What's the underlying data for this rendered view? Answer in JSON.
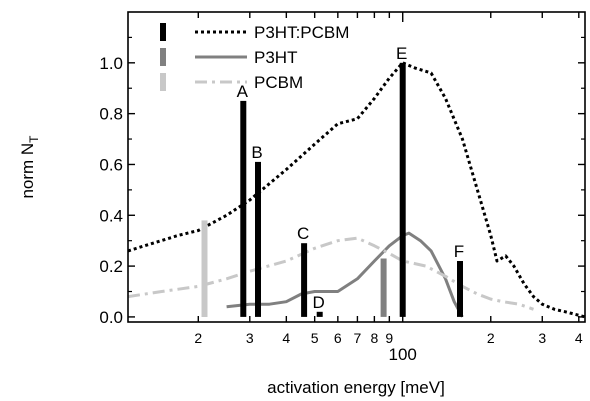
{
  "chart_data": {
    "type": "line",
    "xlabel": "activation energy [meV]",
    "ylabel": "norm N",
    "ylabel_sub": "T",
    "xscale": "log",
    "xlim": [
      11.5,
      420
    ],
    "ylim": [
      -0.02,
      1.2
    ],
    "y_ticks": [
      0.0,
      0.2,
      0.4,
      0.6,
      0.8,
      1.0
    ],
    "y_tick_labels": [
      "0.0",
      "0.2",
      "0.4",
      "0.6",
      "0.8",
      "1.0"
    ],
    "x_ticks": [
      20,
      30,
      40,
      50,
      60,
      70,
      80,
      90,
      100,
      200,
      300,
      400
    ],
    "x_tick_labels": [
      "2",
      "3",
      "4",
      "5",
      "6",
      "7",
      "8",
      "9",
      "100",
      "2",
      "3",
      "4"
    ],
    "legend_position": "top-right",
    "series": [
      {
        "name": "P3HT:PCBM",
        "color": "#000000",
        "style": "dotted",
        "x": [
          11.5,
          14,
          17,
          20,
          25,
          30,
          40,
          50,
          60,
          70,
          80,
          90,
          100,
          110,
          125,
          140,
          160,
          180,
          200,
          210,
          225,
          240,
          260,
          280,
          300,
          330,
          360,
          390,
          420
        ],
        "y": [
          0.26,
          0.29,
          0.32,
          0.34,
          0.4,
          0.46,
          0.58,
          0.68,
          0.76,
          0.78,
          0.86,
          0.94,
          1.0,
          0.98,
          0.96,
          0.86,
          0.7,
          0.5,
          0.32,
          0.22,
          0.24,
          0.2,
          0.13,
          0.08,
          0.05,
          0.03,
          0.02,
          0.01,
          0.0
        ]
      },
      {
        "name": "P3HT",
        "color": "#808080",
        "style": "solid",
        "x": [
          25,
          30,
          35,
          40,
          45,
          50,
          55,
          60,
          70,
          80,
          90,
          100,
          105,
          115,
          125,
          140,
          150,
          160
        ],
        "y": [
          0.04,
          0.05,
          0.05,
          0.06,
          0.09,
          0.1,
          0.1,
          0.1,
          0.15,
          0.22,
          0.28,
          0.32,
          0.33,
          0.3,
          0.26,
          0.15,
          0.06,
          0.0
        ]
      },
      {
        "name": "PCBM",
        "color": "#c8c8c8",
        "style": "dash-dot",
        "x": [
          11.5,
          15,
          20,
          25,
          30,
          40,
          50,
          60,
          70,
          80,
          90,
          100,
          110,
          120,
          140,
          160,
          180,
          200,
          220,
          250,
          280
        ],
        "y": [
          0.08,
          0.1,
          0.12,
          0.15,
          0.18,
          0.22,
          0.27,
          0.3,
          0.31,
          0.28,
          0.25,
          0.22,
          0.21,
          0.2,
          0.16,
          0.12,
          0.09,
          0.07,
          0.06,
          0.05,
          0.03
        ]
      }
    ],
    "bars": [
      {
        "label": "A",
        "x": 28.5,
        "value": 0.85,
        "series": "P3HT:PCBM",
        "color": "#000000"
      },
      {
        "label": "B",
        "x": 32,
        "value": 0.61,
        "series": "P3HT:PCBM",
        "color": "#000000"
      },
      {
        "label": "C",
        "x": 46,
        "value": 0.29,
        "series": "P3HT:PCBM",
        "color": "#000000"
      },
      {
        "label": "D",
        "x": 52,
        "value": 0.02,
        "series": "P3HT:PCBM",
        "color": "#000000"
      },
      {
        "label": "E",
        "x": 100,
        "value": 1.0,
        "series": "P3HT:PCBM",
        "color": "#000000"
      },
      {
        "label": "F",
        "x": 157,
        "value": 0.22,
        "series": "P3HT:PCBM",
        "color": "#000000"
      },
      {
        "label": "",
        "x": 86,
        "value": 0.23,
        "series": "P3HT",
        "color": "#808080"
      },
      {
        "label": "",
        "x": 21,
        "value": 0.38,
        "series": "PCBM",
        "color": "#c8c8c8"
      }
    ]
  }
}
